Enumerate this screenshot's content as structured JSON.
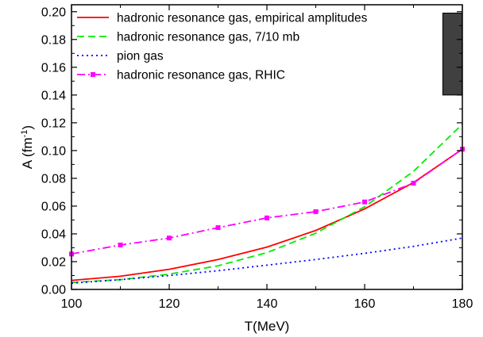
{
  "chart_data": {
    "type": "line",
    "xlabel": "T(MeV)",
    "ylabel_main": "A (fm",
    "ylabel_sup": "-1",
    "ylabel_close": ")",
    "xlim": [
      100,
      180
    ],
    "ylim": [
      0.0,
      0.205
    ],
    "xticks": [
      100,
      120,
      140,
      160,
      180
    ],
    "xtick_labels": [
      "100",
      "120",
      "140",
      "160",
      "180"
    ],
    "yticks": [
      0.0,
      0.02,
      0.04,
      0.06,
      0.08,
      0.1,
      0.12,
      0.14,
      0.16,
      0.18,
      0.2
    ],
    "ytick_labels": [
      "0.00",
      "0.02",
      "0.04",
      "0.06",
      "0.08",
      "0.10",
      "0.12",
      "0.14",
      "0.16",
      "0.18",
      "0.20"
    ],
    "legend_position": "top-left",
    "series": [
      {
        "name": "hadronic resonance gas, empirical amplitudes",
        "color": "#ff0000",
        "style": "solid",
        "x": [
          100,
          110,
          120,
          130,
          140,
          150,
          160,
          170,
          180
        ],
        "y": [
          0.0065,
          0.0095,
          0.0145,
          0.0215,
          0.0305,
          0.0425,
          0.058,
          0.077,
          0.101
        ]
      },
      {
        "name": "hadronic resonance gas, 7/10 mb",
        "color": "#00ee00",
        "style": "dashed",
        "x": [
          100,
          110,
          120,
          130,
          140,
          150,
          160,
          170,
          180
        ],
        "y": [
          0.005,
          0.007,
          0.011,
          0.017,
          0.0265,
          0.0405,
          0.0595,
          0.085,
          0.119
        ]
      },
      {
        "name": "pion gas",
        "color": "#0000ff",
        "style": "dotted",
        "x": [
          100,
          110,
          120,
          130,
          140,
          150,
          160,
          170,
          180
        ],
        "y": [
          0.0045,
          0.007,
          0.01,
          0.0135,
          0.0175,
          0.0215,
          0.026,
          0.031,
          0.037
        ]
      },
      {
        "name": "hadronic resonance gas, RHIC",
        "color": "#ff00ff",
        "style": "dashdot",
        "markers": true,
        "x": [
          100,
          110,
          120,
          130,
          140,
          150,
          160,
          170,
          180
        ],
        "y": [
          0.0255,
          0.032,
          0.037,
          0.0445,
          0.0515,
          0.056,
          0.063,
          0.0765,
          0.101
        ]
      }
    ],
    "band": {
      "color": "#404040",
      "x": [
        176,
        180
      ],
      "y": [
        0.14,
        0.199
      ]
    }
  }
}
